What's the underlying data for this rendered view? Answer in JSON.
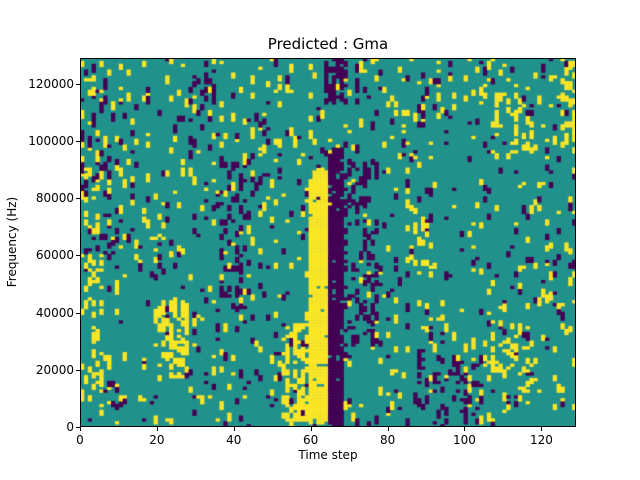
{
  "chart_data": {
    "type": "heatmap",
    "title": "Predicted : Gma",
    "xlabel": "Time step",
    "ylabel": "Frequency (Hz)",
    "x_ticks": [
      0,
      20,
      40,
      60,
      80,
      100,
      120
    ],
    "y_ticks": [
      0,
      20000,
      40000,
      60000,
      80000,
      100000,
      120000
    ],
    "x_range": [
      0,
      129
    ],
    "y_range": [
      0,
      129000
    ],
    "grid_cols": 128,
    "grid_rows": 128,
    "legend": null,
    "grid_lines": false,
    "colors": {
      "background_value": "#21918c",
      "high_value": "#fde725",
      "low_value": "#440154",
      "axis": "#000000",
      "figure_background": "#ffffff"
    },
    "noise": {
      "seed": 1337,
      "high_density": 0.034,
      "low_density": 0.027
    },
    "features": [
      {
        "name": "yellow-vertical-band",
        "color": "high",
        "col_start": 59,
        "col_end": 64,
        "row_start": 2,
        "row_end": 88,
        "density": 0.92
      },
      {
        "name": "yellow-band-bottom-widen",
        "color": "high",
        "col_start": 55,
        "col_end": 64,
        "row_start": 1,
        "row_end": 12,
        "density": 0.5
      },
      {
        "name": "purple-vertical-band",
        "color": "low",
        "col_start": 64,
        "col_end": 68,
        "row_start": 0,
        "row_end": 96,
        "density": 0.82
      },
      {
        "name": "purple-band-top-blob",
        "color": "low",
        "col_start": 63,
        "col_end": 69,
        "row_start": 112,
        "row_end": 128,
        "density": 0.45
      },
      {
        "name": "purple-right-of-band",
        "color": "low",
        "col_start": 68,
        "col_end": 77,
        "row_start": 28,
        "row_end": 92,
        "density": 0.16
      },
      {
        "name": "yellow-cluster-left",
        "color": "high",
        "col_start": 20,
        "col_end": 28,
        "row_start": 16,
        "row_end": 44,
        "density": 0.28
      },
      {
        "name": "yellow-pre-band-bottom",
        "color": "high",
        "col_start": 52,
        "col_end": 60,
        "row_start": 2,
        "row_end": 36,
        "density": 0.25
      },
      {
        "name": "yellow-left-edge",
        "color": "high",
        "col_start": 0,
        "col_end": 6,
        "row_start": 8,
        "row_end": 126,
        "density": 0.1
      },
      {
        "name": "purple-left-edge",
        "color": "low",
        "col_start": 0,
        "col_end": 8,
        "row_start": 60,
        "row_end": 120,
        "density": 0.08
      },
      {
        "name": "purple-mid-left-column",
        "color": "low",
        "col_start": 36,
        "col_end": 44,
        "row_start": 40,
        "row_end": 95,
        "density": 0.12
      },
      {
        "name": "purple-bottom-right",
        "color": "low",
        "col_start": 86,
        "col_end": 104,
        "row_start": 0,
        "row_end": 24,
        "density": 0.12
      },
      {
        "name": "yellow-bottom-right",
        "color": "high",
        "col_start": 104,
        "col_end": 118,
        "row_start": 12,
        "row_end": 36,
        "density": 0.1
      },
      {
        "name": "yellow-top-right",
        "color": "high",
        "col_start": 106,
        "col_end": 118,
        "row_start": 92,
        "row_end": 116,
        "density": 0.12
      },
      {
        "name": "yellow-far-right-top-edge",
        "color": "high",
        "col_start": 124,
        "col_end": 128,
        "row_start": 96,
        "row_end": 128,
        "density": 0.22
      },
      {
        "name": "purple-top-center-left",
        "color": "low",
        "col_start": 28,
        "col_end": 36,
        "row_start": 96,
        "row_end": 124,
        "density": 0.12
      },
      {
        "name": "yellow-mid-right",
        "color": "high",
        "col_start": 84,
        "col_end": 92,
        "row_start": 52,
        "row_end": 72,
        "density": 0.1
      }
    ]
  }
}
